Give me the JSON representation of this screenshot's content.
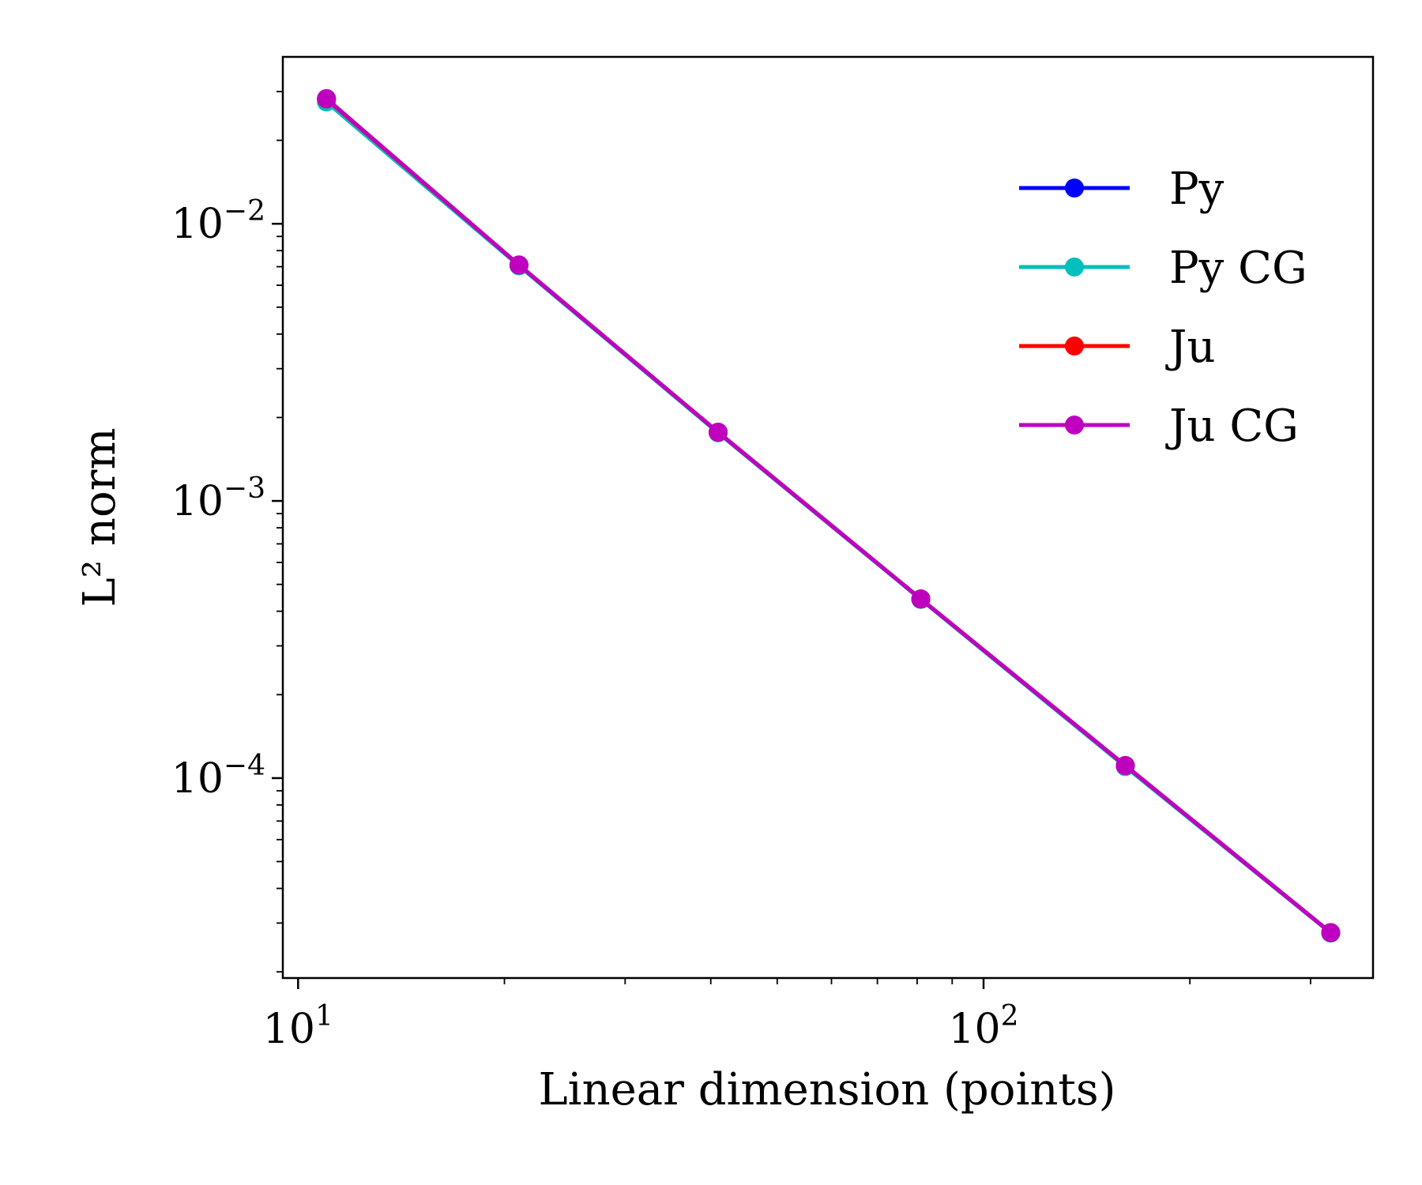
{
  "chart_data": {
    "type": "line",
    "title": "",
    "xlabel": "Linear dimension (points)",
    "ylabel": "L² norm",
    "xscale": "log",
    "yscale": "log",
    "xlim": [
      9.5,
      370
    ],
    "ylim": [
      1.9e-05,
      0.04
    ],
    "grid": false,
    "legend": "right, upper",
    "x": [
      11,
      21,
      41,
      81,
      161,
      321
    ],
    "x_ticks": [
      {
        "value": 10,
        "base": "10",
        "exp": "1"
      },
      {
        "value": 100,
        "base": "10",
        "exp": "2"
      }
    ],
    "y_ticks": [
      {
        "value": 0.01,
        "base": "10",
        "exp": "−2"
      },
      {
        "value": 0.001,
        "base": "10",
        "exp": "−3"
      },
      {
        "value": 0.0001,
        "base": "10",
        "exp": "−4"
      }
    ],
    "series": [
      {
        "name": "Py",
        "color": "#0000ff",
        "values": [
          0.0282,
          0.0071,
          0.00177,
          0.000443,
          0.000111,
          2.77e-05
        ]
      },
      {
        "name": "Py CG",
        "color": "#00bfbf",
        "values": [
          0.0275,
          0.00705,
          0.00176,
          0.000441,
          0.00011,
          2.76e-05
        ]
      },
      {
        "name": "Ju",
        "color": "#ff0000",
        "values": [
          0.0282,
          0.0071,
          0.00177,
          0.000443,
          0.000111,
          2.77e-05
        ]
      },
      {
        "name": "Ju CG",
        "color": "#bf00bf",
        "values": [
          0.0283,
          0.0071,
          0.00177,
          0.000443,
          0.000111,
          2.77e-05
        ]
      }
    ]
  }
}
